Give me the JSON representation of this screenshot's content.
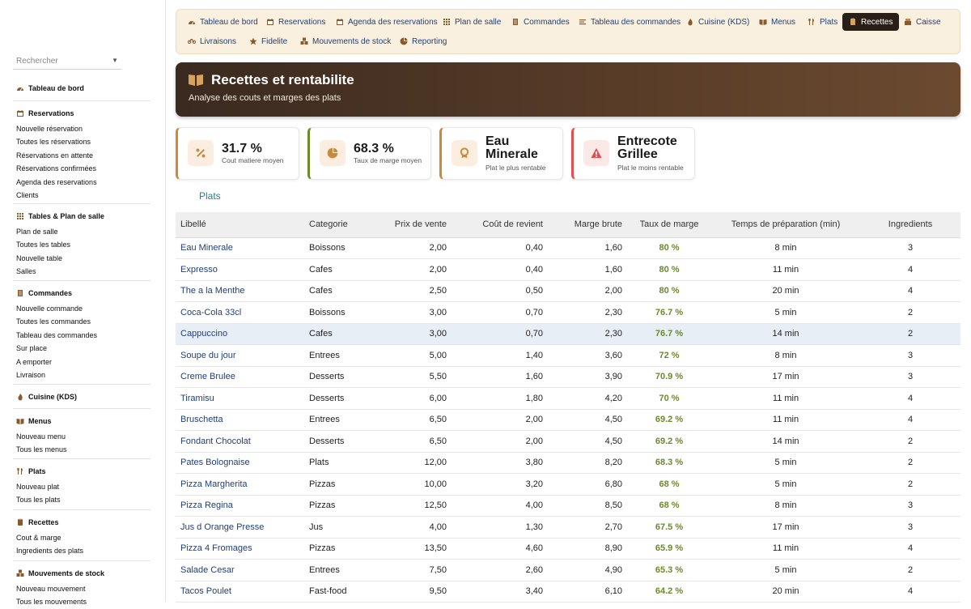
{
  "search": {
    "placeholder": "Rechercher"
  },
  "sidebar": {
    "sections": [
      {
        "title": "Tableau de bord",
        "icon": "dashboard-icon",
        "items": []
      },
      {
        "title": "Reservations",
        "icon": "calendar-icon",
        "items": [
          "Nouvelle réservation",
          "Toutes les réservations",
          "Réservations en attente",
          "Réservations confirmées",
          "Agenda des reservations",
          "Clients"
        ]
      },
      {
        "title": "Tables & Plan de salle",
        "icon": "grid-icon",
        "items": [
          "Plan de salle",
          "Toutes les tables",
          "Nouvelle table",
          "Salles"
        ]
      },
      {
        "title": "Commandes",
        "icon": "order-icon",
        "items": [
          "Nouvelle commande",
          "Toutes les commandes",
          "Tableau des commandes",
          "Sur place",
          "A emporter",
          "Livraison"
        ]
      },
      {
        "title": "Cuisine (KDS)",
        "icon": "flame-icon",
        "items": []
      },
      {
        "title": "Menus",
        "icon": "book-icon",
        "items": [
          "Nouveau menu",
          "Tous les menus"
        ]
      },
      {
        "title": "Plats",
        "icon": "utensils-icon",
        "items": [
          "Nouveau plat",
          "Tous les plats"
        ]
      },
      {
        "title": "Recettes",
        "icon": "recipe-icon",
        "items": [
          "Cout & marge",
          "Ingredients des plats"
        ]
      },
      {
        "title": "Mouvements de stock",
        "icon": "boxes-icon",
        "items": [
          "Nouveau mouvement",
          "Tous les mouvements"
        ]
      }
    ]
  },
  "topnav": {
    "row1": [
      {
        "label": "Tableau de bord",
        "icon": "dashboard-icon"
      },
      {
        "label": "Reservations",
        "icon": "calendar-icon"
      },
      {
        "label": "Agenda des reservations",
        "icon": "calendar-icon"
      },
      {
        "label": "Plan de salle",
        "icon": "grid-icon"
      },
      {
        "label": "Commandes",
        "icon": "order-icon"
      },
      {
        "label": "Tableau des commandes",
        "icon": "list-icon"
      },
      {
        "label": "Cuisine (KDS)",
        "icon": "flame-icon"
      },
      {
        "label": "Menus",
        "icon": "book-icon"
      },
      {
        "label": "Plats",
        "icon": "utensils-icon"
      },
      {
        "label": "Recettes",
        "icon": "recipe-icon",
        "active": true
      },
      {
        "label": "Caisse",
        "icon": "cash-icon"
      }
    ],
    "row2": [
      {
        "label": "Livraisons",
        "icon": "bike-icon"
      },
      {
        "label": "Fidelite",
        "icon": "star-icon"
      },
      {
        "label": "Mouvements de stock",
        "icon": "boxes-icon"
      },
      {
        "label": "Reporting",
        "icon": "pie-icon"
      }
    ]
  },
  "banner": {
    "title": "Recettes et rentabilite",
    "subtitle": "Analyse des couts et marges des plats"
  },
  "kpis": [
    {
      "value": "31.7 %",
      "label": "Cout matiere moyen",
      "icon": "percent-icon",
      "accent": "#c98a3a"
    },
    {
      "value": "68.3 %",
      "label": "Taux de marge moyen",
      "icon": "pie-icon",
      "accent": "#6b8a2a"
    },
    {
      "value": "Eau Minerale",
      "label": "Plat le plus rentable",
      "icon": "award-icon",
      "accent": "#c98a3a"
    },
    {
      "value": "Entrecote Grillee",
      "label": "Plat le moins rentable",
      "icon": "warning-icon",
      "accent": "#e05050"
    }
  ],
  "tab_label": "Plats",
  "table": {
    "headers": [
      "Libellé",
      "Categorie",
      "Prix de vente",
      "Coût de revient",
      "Marge brute",
      "Taux de marge",
      "Temps de préparation (min)",
      "Ingredients"
    ],
    "rows": [
      [
        "Eau Minerale",
        "Boissons",
        "2,00",
        "0,40",
        "1,60",
        "80 %",
        "8 min",
        "3"
      ],
      [
        "Expresso",
        "Cafes",
        "2,00",
        "0,40",
        "1,60",
        "80 %",
        "11 min",
        "4"
      ],
      [
        "The a la Menthe",
        "Cafes",
        "2,50",
        "0,50",
        "2,00",
        "80 %",
        "20 min",
        "4"
      ],
      [
        "Coca-Cola 33cl",
        "Boissons",
        "3,00",
        "0,70",
        "2,30",
        "76.7 %",
        "5 min",
        "2"
      ],
      [
        "Cappuccino",
        "Cafes",
        "3,00",
        "0,70",
        "2,30",
        "76.7 %",
        "14 min",
        "2"
      ],
      [
        "Soupe du jour",
        "Entrees",
        "5,00",
        "1,40",
        "3,60",
        "72 %",
        "8 min",
        "3"
      ],
      [
        "Creme Brulee",
        "Desserts",
        "5,50",
        "1,60",
        "3,90",
        "70.9 %",
        "17 min",
        "3"
      ],
      [
        "Tiramisu",
        "Desserts",
        "6,00",
        "1,80",
        "4,20",
        "70 %",
        "11 min",
        "4"
      ],
      [
        "Bruschetta",
        "Entrees",
        "6,50",
        "2,00",
        "4,50",
        "69.2 %",
        "11 min",
        "4"
      ],
      [
        "Fondant Chocolat",
        "Desserts",
        "6,50",
        "2,00",
        "4,50",
        "69.2 %",
        "14 min",
        "2"
      ],
      [
        "Pates Bolognaise",
        "Plats",
        "12,00",
        "3,80",
        "8,20",
        "68.3 %",
        "5 min",
        "2"
      ],
      [
        "Pizza Margherita",
        "Pizzas",
        "10,00",
        "3,20",
        "6,80",
        "68 %",
        "5 min",
        "2"
      ],
      [
        "Pizza Regina",
        "Pizzas",
        "12,50",
        "4,00",
        "8,50",
        "68 %",
        "8 min",
        "3"
      ],
      [
        "Jus d Orange Presse",
        "Jus",
        "4,00",
        "1,30",
        "2,70",
        "67.5 %",
        "17 min",
        "3"
      ],
      [
        "Pizza 4 Fromages",
        "Pizzas",
        "13,50",
        "4,60",
        "8,90",
        "65.9 %",
        "11 min",
        "4"
      ],
      [
        "Salade Cesar",
        "Entrees",
        "7,50",
        "2,60",
        "4,90",
        "65.3 %",
        "5 min",
        "2"
      ],
      [
        "Tacos Poulet",
        "Fast-food",
        "9,50",
        "3,40",
        "6,10",
        "64.2 %",
        "20 min",
        "4"
      ]
    ],
    "highlighted_row": 4
  }
}
